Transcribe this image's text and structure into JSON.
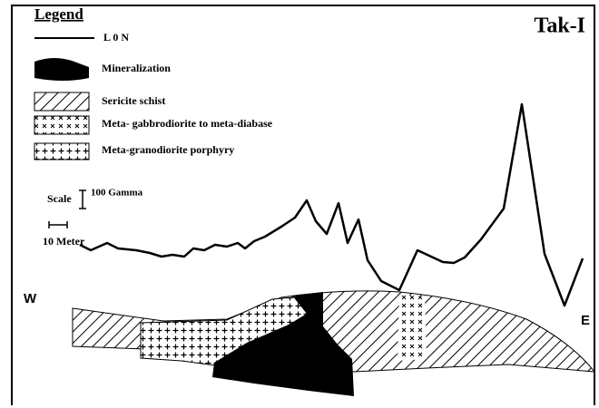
{
  "title": "Tak-I",
  "legend": {
    "heading": "Legend",
    "items": [
      "L 0 N",
      "Mineralization",
      "Sericite schist",
      "Meta- gabbrodiorite to meta-diabase",
      "Meta-granodiorite porphyry"
    ]
  },
  "scale": {
    "label": "Scale",
    "vertical": "100 Gamma",
    "horizontal": "10 Meter"
  },
  "directions": {
    "west": "W",
    "east": "E"
  }
}
